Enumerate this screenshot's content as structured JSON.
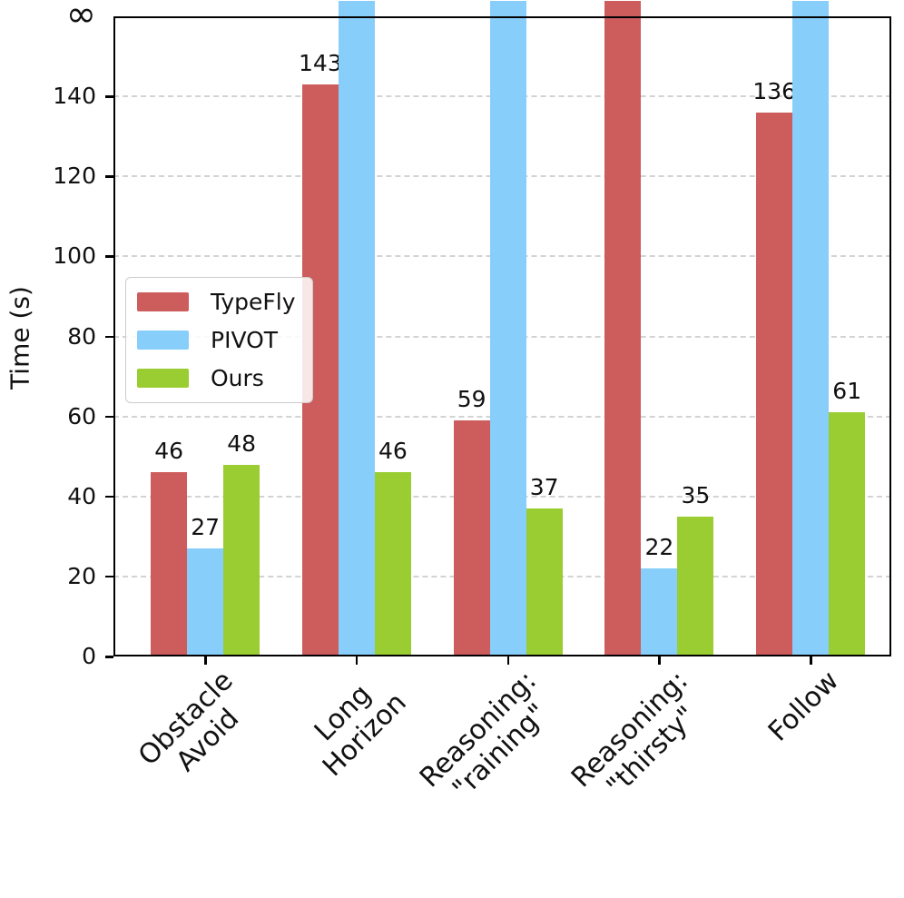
{
  "chart_data": {
    "type": "bar",
    "title": "",
    "xlabel": "",
    "ylabel": "Time (s)",
    "categories": [
      "Obstacle Avoid",
      "Long Horizon",
      "Reasoning:\n\"raining\"",
      "Reasoning:\n\"thirsty\"",
      "Follow"
    ],
    "series": [
      {
        "name": "TypeFly",
        "color": "#CD5C5C",
        "values": [
          46,
          143,
          59,
          "inf",
          136
        ]
      },
      {
        "name": "PIVOT",
        "color": "#87CEFA",
        "values": [
          27,
          "inf",
          "inf",
          22,
          "inf"
        ]
      },
      {
        "name": "Ours",
        "color": "#9ACD32",
        "values": [
          48,
          46,
          37,
          35,
          61
        ]
      }
    ],
    "y_ticks": [
      0,
      20,
      40,
      60,
      80,
      100,
      120,
      140
    ],
    "y_top_label": "∞",
    "ylim": [
      0,
      160
    ],
    "infinity_note": "bars marked inf extend past the top axis spine",
    "grid": "horizontal dashed",
    "legend_position": "upper left"
  }
}
